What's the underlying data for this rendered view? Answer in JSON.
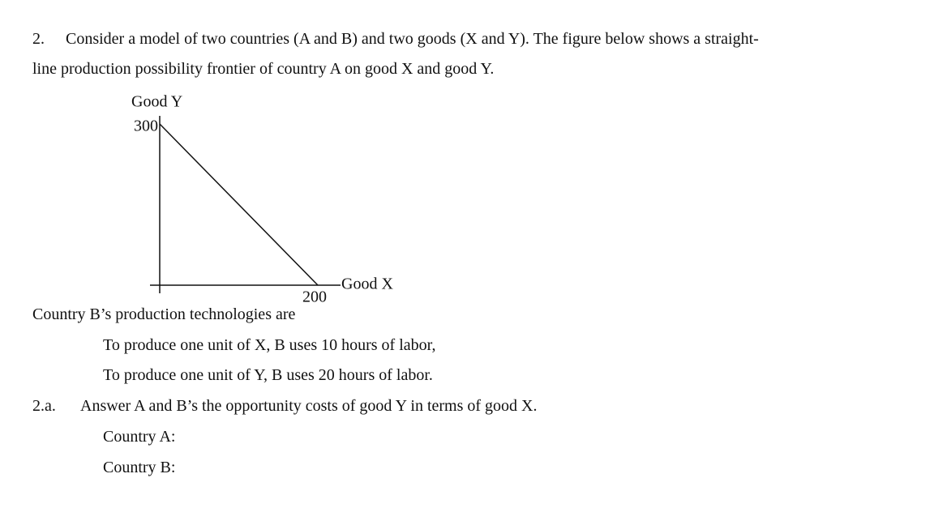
{
  "question": {
    "number": "2.",
    "lines": [
      "Consider a model of two countries (A and B) and two goods (X and Y). The figure below shows a straight-",
      "line production possibility frontier of country A on good X and good Y."
    ]
  },
  "figure": {
    "y_label": "Good Y",
    "x_label": "Good X",
    "y_intercept": 300,
    "x_intercept": 200
  },
  "technology": {
    "intro": "Country B’s production technologies are",
    "items": [
      "To produce one unit of X, B uses 10 hours of labor,",
      "To produce one unit of Y, B uses 20 hours of labor."
    ]
  },
  "subquestion": {
    "number": "2.a.",
    "text": "Answer A and B’s the opportunity costs of good Y in terms of good X."
  },
  "answers": [
    "Country A:",
    "Country B:"
  ]
}
